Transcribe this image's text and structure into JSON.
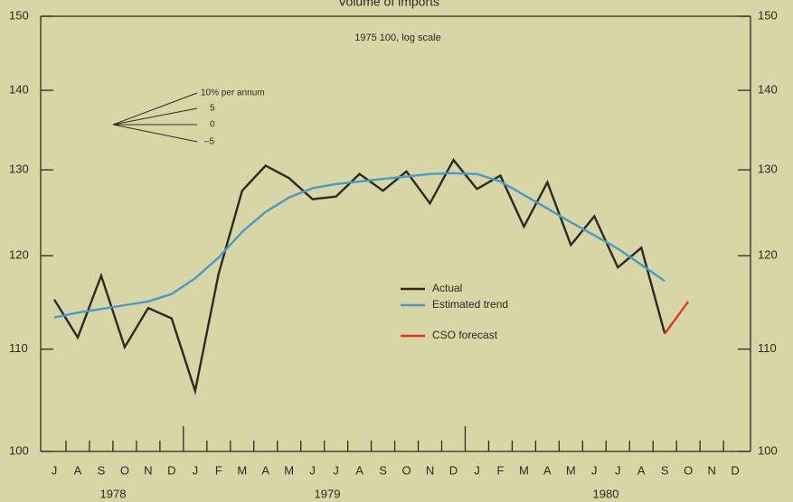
{
  "chart_data": {
    "type": "line",
    "title": "Volume of imports",
    "subtitle": "1975   100, log scale",
    "categories": [
      "J",
      "A",
      "S",
      "O",
      "N",
      "D",
      "J",
      "F",
      "M",
      "A",
      "M",
      "J",
      "J",
      "A",
      "S",
      "O",
      "N",
      "D",
      "J",
      "F",
      "M",
      "A",
      "M",
      "J",
      "J",
      "A",
      "S",
      "O",
      "N",
      "D"
    ],
    "years": [
      "1978",
      "1979",
      "1980"
    ],
    "series": [
      {
        "name": "Actual",
        "color": "#2b2a24",
        "values": [
          115.2,
          111.2,
          117.8,
          110.2,
          114.3,
          113.2,
          105.8,
          118,
          127.5,
          130.5,
          129,
          126.5,
          126.8,
          129.5,
          127.5,
          129.8,
          126,
          131.2,
          127.7,
          129.3,
          123.3,
          128.5,
          121.2,
          124.5,
          118.7,
          120.9,
          111.6,
          null,
          null,
          null
        ]
      },
      {
        "name": "Estimated trend",
        "color": "#4a9ac6",
        "values": [
          113.3,
          113.8,
          114.2,
          114.6,
          115,
          115.8,
          117.5,
          119.8,
          122.7,
          125,
          126.7,
          127.8,
          128.3,
          128.6,
          128.9,
          129.2,
          129.5,
          129.6,
          129.5,
          128.6,
          127,
          125.4,
          123.8,
          122.3,
          120.8,
          119,
          117.2,
          null,
          null,
          null
        ]
      },
      {
        "name": "CSO forecast",
        "color": "#e0391f",
        "values": [
          null,
          null,
          null,
          null,
          null,
          null,
          null,
          null,
          null,
          null,
          null,
          null,
          null,
          null,
          null,
          null,
          null,
          null,
          null,
          null,
          null,
          null,
          null,
          null,
          null,
          null,
          111.6,
          115,
          null,
          null
        ]
      }
    ],
    "annotations": [
      "10% per annum",
      "5",
      "0",
      "–5"
    ],
    "log_scale": true,
    "ylim": [
      100,
      150
    ],
    "yticks": [
      100,
      110,
      120,
      130,
      140,
      150
    ]
  }
}
